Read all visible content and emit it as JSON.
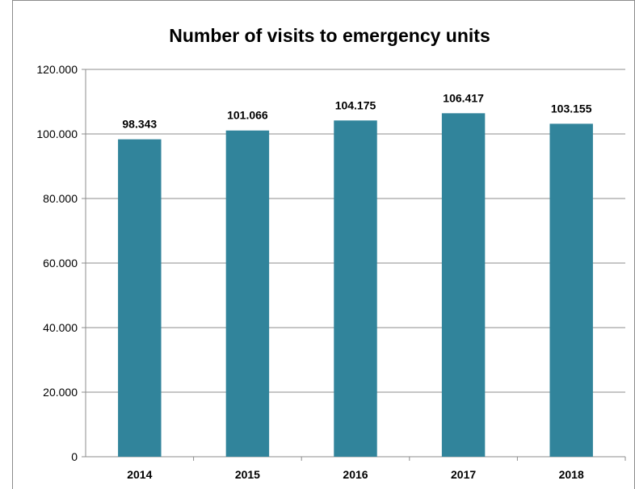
{
  "chart_data": {
    "type": "bar",
    "title": "Number of visits to emergency units",
    "xlabel": "",
    "ylabel": "",
    "categories": [
      "2014",
      "2015",
      "2016",
      "2017",
      "2018"
    ],
    "values": [
      98343,
      101066,
      104175,
      106417,
      103155
    ],
    "value_labels": [
      "98.343",
      "101.066",
      "104.175",
      "106.417",
      "103.155"
    ],
    "ylim": [
      0,
      120000
    ],
    "yticks": [
      0,
      20000,
      40000,
      60000,
      80000,
      100000,
      120000
    ],
    "ytick_labels": [
      "0",
      "20.000",
      "40.000",
      "60.000",
      "80.000",
      "100.000",
      "120.000"
    ],
    "grid": true,
    "legend": "none",
    "bar_color": "#31849b"
  }
}
